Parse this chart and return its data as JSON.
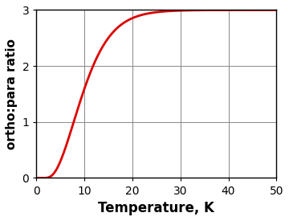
{
  "title": "",
  "xlabel": "Temperature, K",
  "ylabel": "ortho:para ratio",
  "xlim": [
    0,
    50
  ],
  "ylim": [
    0,
    3
  ],
  "xticks": [
    0,
    10,
    20,
    30,
    40,
    50
  ],
  "yticks": [
    0,
    1,
    2,
    3
  ],
  "line_color": "#dd0000",
  "line_width": 2.0,
  "grid_color": "#888888",
  "background_color": "#ffffff",
  "xlabel_fontsize": 12,
  "ylabel_fontsize": 11,
  "tick_fontsize": 10,
  "B_rot": 8.5
}
